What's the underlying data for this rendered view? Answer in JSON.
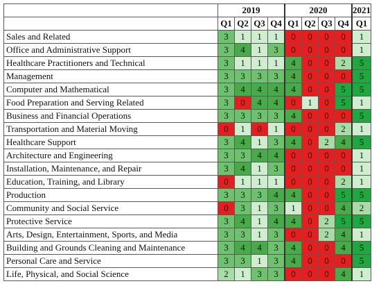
{
  "chart_data": {
    "type": "heatmap",
    "years": [
      {
        "label": "2019",
        "span": 4
      },
      {
        "label": "2020",
        "span": 4
      },
      {
        "label": "2021",
        "span": 1
      }
    ],
    "quarters": [
      "Q1",
      "Q2",
      "Q3",
      "Q4",
      "Q1",
      "Q2",
      "Q3",
      "Q4",
      "Q1"
    ],
    "categories": [
      "Sales and Related",
      "Office and Administrative Support",
      "Healthcare Practitioners and Technical",
      "Management",
      "Computer and Mathematical",
      "Food Preparation and Serving Related",
      "Business and Financial Operations",
      "Transportation and Material Moving",
      "Healthcare Support",
      "Architecture and Engineering",
      "Installation, Maintenance, and Repair",
      "Education, Training, and Library",
      "Production",
      "Community and Social Service",
      "Protective Service",
      "Arts, Design, Entertainment, Sports, and Media",
      "Building and Grounds Cleaning and Maintenance",
      "Personal Care and Service",
      "Life, Physical, and Social Science"
    ],
    "values": [
      [
        3,
        1,
        1,
        1,
        0,
        0,
        0,
        0,
        1
      ],
      [
        3,
        4,
        1,
        3,
        0,
        0,
        0,
        0,
        1
      ],
      [
        3,
        1,
        1,
        1,
        4,
        0,
        0,
        2,
        5
      ],
      [
        3,
        3,
        3,
        3,
        4,
        0,
        0,
        0,
        5
      ],
      [
        3,
        4,
        4,
        4,
        4,
        0,
        0,
        5,
        5
      ],
      [
        3,
        0,
        4,
        4,
        0,
        1,
        0,
        5,
        1
      ],
      [
        3,
        3,
        3,
        3,
        4,
        0,
        0,
        0,
        5
      ],
      [
        0,
        1,
        0,
        1,
        0,
        0,
        0,
        2,
        1
      ],
      [
        3,
        4,
        1,
        3,
        4,
        0,
        2,
        4,
        5
      ],
      [
        3,
        3,
        4,
        4,
        0,
        0,
        0,
        0,
        1
      ],
      [
        3,
        4,
        1,
        3,
        0,
        0,
        0,
        0,
        1
      ],
      [
        0,
        1,
        1,
        1,
        0,
        0,
        0,
        2,
        1
      ],
      [
        3,
        3,
        3,
        4,
        4,
        0,
        0,
        5,
        5
      ],
      [
        0,
        3,
        1,
        3,
        1,
        0,
        0,
        4,
        2
      ],
      [
        3,
        4,
        1,
        4,
        4,
        0,
        2,
        5,
        5
      ],
      [
        3,
        3,
        1,
        3,
        0,
        0,
        2,
        4,
        1
      ],
      [
        3,
        4,
        4,
        3,
        4,
        0,
        0,
        4,
        5
      ],
      [
        3,
        3,
        1,
        3,
        4,
        0,
        0,
        0,
        5
      ],
      [
        2,
        1,
        3,
        3,
        0,
        0,
        0,
        4,
        1
      ]
    ],
    "colors": {
      "0": "#e81e1e",
      "1": "#cfeecf",
      "2": "#a7dca7",
      "3": "#6dc26d",
      "4": "#47ab47",
      "5": "#1fa83f"
    }
  }
}
